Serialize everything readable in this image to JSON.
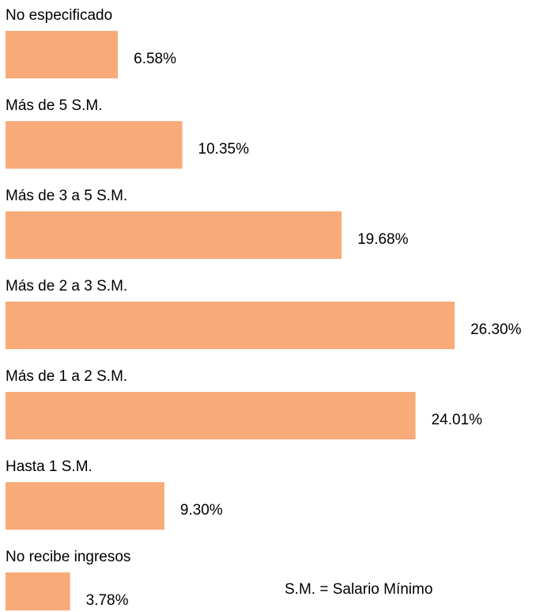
{
  "chart_data": {
    "type": "bar",
    "orientation": "horizontal",
    "categories": [
      "No especificado",
      "Más de 5 S.M.",
      "Más de 3 a 5 S.M.",
      "Más de 2 a 3 S.M.",
      "Más de 1 a 2 S.M.",
      "Hasta 1 S.M.",
      "No recibe ingresos"
    ],
    "values": [
      6.58,
      10.35,
      19.68,
      26.3,
      24.01,
      9.3,
      3.78
    ],
    "value_labels": [
      "6.58%",
      "10.35%",
      "19.68%",
      "26.30%",
      "24.01%",
      "9.30%",
      "3.78%"
    ],
    "color": "#f8ab78",
    "annotation": "S.M. = Salario Mínimo"
  }
}
